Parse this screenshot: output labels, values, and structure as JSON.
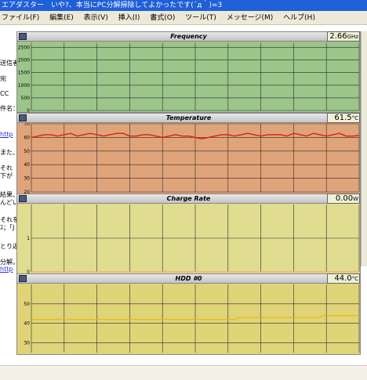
{
  "window": {
    "title": "エアダスター　いや?、本当にPC分解掃除してよかったです(´д｀)=3",
    "menu": [
      "ファイル(F)",
      "編集(E)",
      "表示(V)",
      "挿入(I)",
      "書式(O)",
      "ツール(T)",
      "メッセージ(M)",
      "ヘルプ(H)"
    ]
  },
  "background_fragments": [
    "送信者",
    "宛",
    "CC",
    "件名：",
    "http",
    "また、",
    "それ",
    "下が",
    "結果、",
    "んどい",
    "それを",
    "ｽ；「J",
    "とり返",
    "分解。",
    "http"
  ],
  "colors": {
    "frequency_bg": "#9cc58a",
    "temperature_bg": "#e0a47a",
    "charge_bg": "#e0dc90",
    "hdd_bg": "#e0d479",
    "temperature_line": "#dd2200",
    "hdd_line": "#f2b400",
    "charge_line": "#f0a878"
  },
  "panels": {
    "frequency": {
      "title": "Frequency",
      "value": "2.66",
      "unit": "GHz",
      "icon": "bar-graph-icon"
    },
    "temperature": {
      "title": "Temperature",
      "value": "61.5",
      "unit": "°C",
      "icon": "thermometer-icon"
    },
    "charge": {
      "title": "Charge Rate",
      "value": "0.00",
      "unit": "W",
      "icon": "battery-icon"
    },
    "hdd": {
      "title": "HDD #0",
      "value": "44.0",
      "unit": "°C",
      "icon": "disk-icon"
    }
  },
  "chart_data": [
    {
      "type": "line",
      "title": "Frequency",
      "ylim": [
        0,
        2700
      ],
      "yticks": [
        0,
        500,
        1000,
        1500,
        2000,
        2500
      ],
      "x": [
        0,
        1
      ],
      "series": [
        {
          "values": [
            2660,
            2660
          ]
        }
      ],
      "grid": true
    },
    {
      "type": "line",
      "title": "Temperature",
      "ylim": [
        20,
        70
      ],
      "yticks": [
        20,
        30,
        40,
        50,
        60,
        70
      ],
      "x": [
        0,
        0.02,
        0.04,
        0.06,
        0.08,
        0.1,
        0.12,
        0.14,
        0.16,
        0.18,
        0.2,
        0.22,
        0.24,
        0.26,
        0.28,
        0.3,
        0.32,
        0.34,
        0.36,
        0.38,
        0.4,
        0.42,
        0.44,
        0.46,
        0.48,
        0.5,
        0.52,
        0.54,
        0.56,
        0.58,
        0.6,
        0.62,
        0.64,
        0.66,
        0.68,
        0.7,
        0.72,
        0.74,
        0.76,
        0.78,
        0.8,
        0.82,
        0.84,
        0.86,
        0.88,
        0.9,
        0.92,
        0.94,
        0.96,
        0.98,
        1
      ],
      "series": [
        {
          "values": [
            60,
            61,
            62,
            62,
            61,
            62,
            63,
            61,
            62,
            63,
            62,
            61,
            62,
            63,
            63,
            61,
            61,
            62,
            62,
            61,
            60,
            61,
            62,
            61,
            61,
            60,
            59,
            60,
            61,
            62,
            62,
            61,
            62,
            63,
            62,
            61,
            62,
            62,
            62,
            61,
            63,
            62,
            61,
            63,
            62,
            61,
            62,
            63,
            61,
            61,
            61.5
          ]
        }
      ],
      "grid": true
    },
    {
      "type": "line",
      "title": "Charge Rate",
      "ylim": [
        0,
        2
      ],
      "yticks": [
        0,
        1
      ],
      "x": [
        0,
        1
      ],
      "series": [
        {
          "values": [
            0,
            0
          ]
        }
      ],
      "grid": true
    },
    {
      "type": "line",
      "title": "HDD #0",
      "ylim": [
        25,
        60
      ],
      "yticks": [
        30,
        40,
        50
      ],
      "x": [
        0,
        0.62,
        0.63,
        0.88,
        0.89,
        1
      ],
      "series": [
        {
          "values": [
            42,
            42,
            43,
            43,
            44,
            44
          ]
        }
      ],
      "grid": true
    }
  ]
}
